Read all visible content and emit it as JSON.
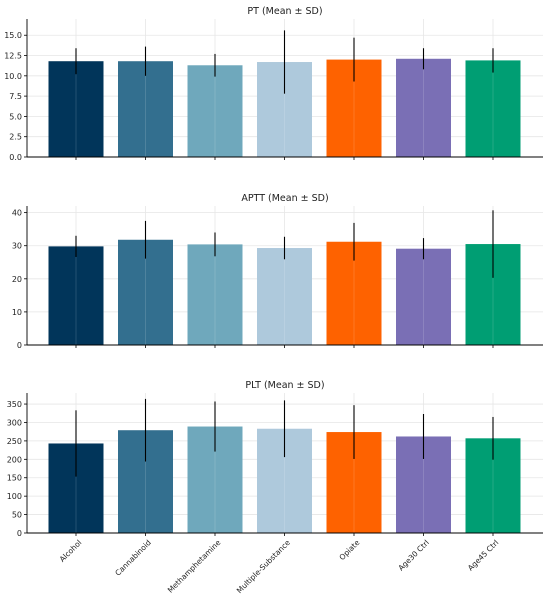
{
  "chart_data": [
    {
      "type": "bar",
      "title": "PT (Mean ± SD)",
      "categories": [
        "Alcohol",
        "Cannabinoid",
        "Methamphetamine",
        "Multiple-Substance",
        "Opiate",
        "Age30 Ctrl",
        "Age45 Ctrl"
      ],
      "values": [
        11.8,
        11.8,
        11.3,
        11.7,
        12.0,
        12.1,
        11.9
      ],
      "error": [
        1.6,
        1.8,
        1.4,
        3.9,
        2.7,
        1.3,
        1.5
      ],
      "ylim": [
        0,
        17
      ],
      "yticks": [
        0.0,
        2.5,
        5.0,
        7.5,
        10.0,
        12.5,
        15.0
      ],
      "ytick_labels": [
        "0.0",
        "2.5",
        "5.0",
        "7.5",
        "10.0",
        "12.5",
        "15.0"
      ],
      "xlabel": "",
      "ylabel": "",
      "grid": true,
      "show_category_labels": false
    },
    {
      "type": "bar",
      "title": "APTT (Mean ± SD)",
      "categories": [
        "Alcohol",
        "Cannabinoid",
        "Methamphetamine",
        "Multiple-Substance",
        "Opiate",
        "Age30 Ctrl",
        "Age45 Ctrl"
      ],
      "values": [
        29.8,
        31.8,
        30.4,
        29.3,
        31.2,
        29.1,
        30.5
      ],
      "error": [
        3.2,
        5.7,
        3.6,
        3.4,
        5.7,
        3.2,
        10.2
      ],
      "ylim": [
        0,
        42
      ],
      "yticks": [
        0,
        10,
        20,
        30,
        40
      ],
      "ytick_labels": [
        "0",
        "10",
        "20",
        "30",
        "40"
      ],
      "xlabel": "",
      "ylabel": "",
      "grid": true,
      "show_category_labels": false
    },
    {
      "type": "bar",
      "title": "PLT (Mean ± SD)",
      "categories": [
        "Alcohol",
        "Cannabinoid",
        "Methamphetamine",
        "Multiple-Substance",
        "Opiate",
        "Age30 Ctrl",
        "Age45 Ctrl"
      ],
      "values": [
        243,
        279,
        289,
        283,
        274,
        262,
        257
      ],
      "error": [
        90,
        85,
        68,
        77,
        73,
        61,
        58
      ],
      "ylim": [
        0,
        380
      ],
      "yticks": [
        0,
        50,
        100,
        150,
        200,
        250,
        300,
        350
      ],
      "ytick_labels": [
        "0",
        "50",
        "100",
        "150",
        "200",
        "250",
        "300",
        "350"
      ],
      "xlabel": "",
      "ylabel": "",
      "grid": true,
      "show_category_labels": true
    }
  ],
  "colors": [
    "#01355a",
    "#336f8f",
    "#6fa8bc",
    "#aec9dc",
    "#fe6200",
    "#7a6fb5",
    "#009e73"
  ]
}
